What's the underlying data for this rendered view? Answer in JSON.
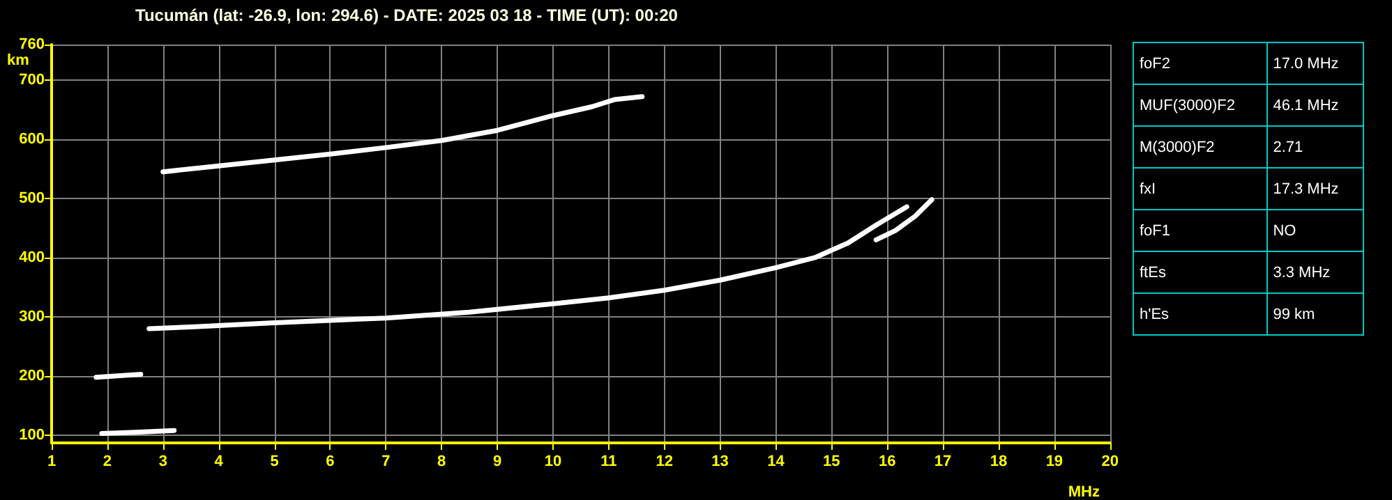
{
  "chart_data": [
    {
      "type": "line",
      "title": "Tucumán (lat: -26.9, lon: 294.6) - DATE: 2025 03 18 - TIME (UT): 00:20",
      "xlabel": "MHz",
      "ylabel": "km",
      "xlim": [
        1,
        20
      ],
      "xticks": [
        1,
        2,
        3,
        4,
        5,
        6,
        7,
        8,
        9,
        10,
        11,
        12,
        13,
        14,
        15,
        16,
        17,
        18,
        19,
        20
      ],
      "ylim": [
        87,
        760
      ],
      "yticks": [
        100,
        200,
        300,
        400,
        500,
        600,
        700,
        760
      ],
      "grid": true,
      "marker": "none",
      "line_style": "solid",
      "series": [
        {
          "color": "#ffffff",
          "x": [
            2.75,
            3.5,
            5,
            7,
            8.5,
            10,
            11,
            12,
            13,
            14,
            14.7,
            15.3,
            15.8,
            16.35
          ],
          "values": [
            280,
            283,
            290,
            298,
            308,
            322,
            332,
            345,
            362,
            383,
            400,
            425,
            455,
            486
          ]
        },
        {
          "color": "#ffffff",
          "x": [
            15.8,
            16.15,
            16.5,
            16.8
          ],
          "values": [
            430,
            446,
            470,
            498
          ]
        },
        {
          "color": "#ffffff",
          "x": [
            3.0,
            4,
            5,
            6,
            7,
            8,
            9,
            10,
            10.7,
            11.1,
            11.6
          ],
          "values": [
            545,
            555,
            565,
            575,
            586,
            598,
            615,
            640,
            655,
            667,
            672
          ]
        },
        {
          "color": "#ffffff",
          "x": [
            1.9,
            2.5,
            3.2
          ],
          "values": [
            103,
            105,
            108
          ]
        },
        {
          "color": "#ffffff",
          "x": [
            1.8,
            2.6
          ],
          "values": [
            198,
            203
          ]
        }
      ]
    },
    {
      "type": "other",
      "annotations": [
        "foF2",
        "17.0 MHz",
        "MUF(3000)F2",
        "46.1 MHz",
        "M(3000)F2",
        "2.71",
        "fxI",
        "17.3 MHz",
        "foF1",
        "NO",
        "ftEs",
        "3.3 MHz",
        "h'Es",
        "99 km"
      ]
    }
  ]
}
